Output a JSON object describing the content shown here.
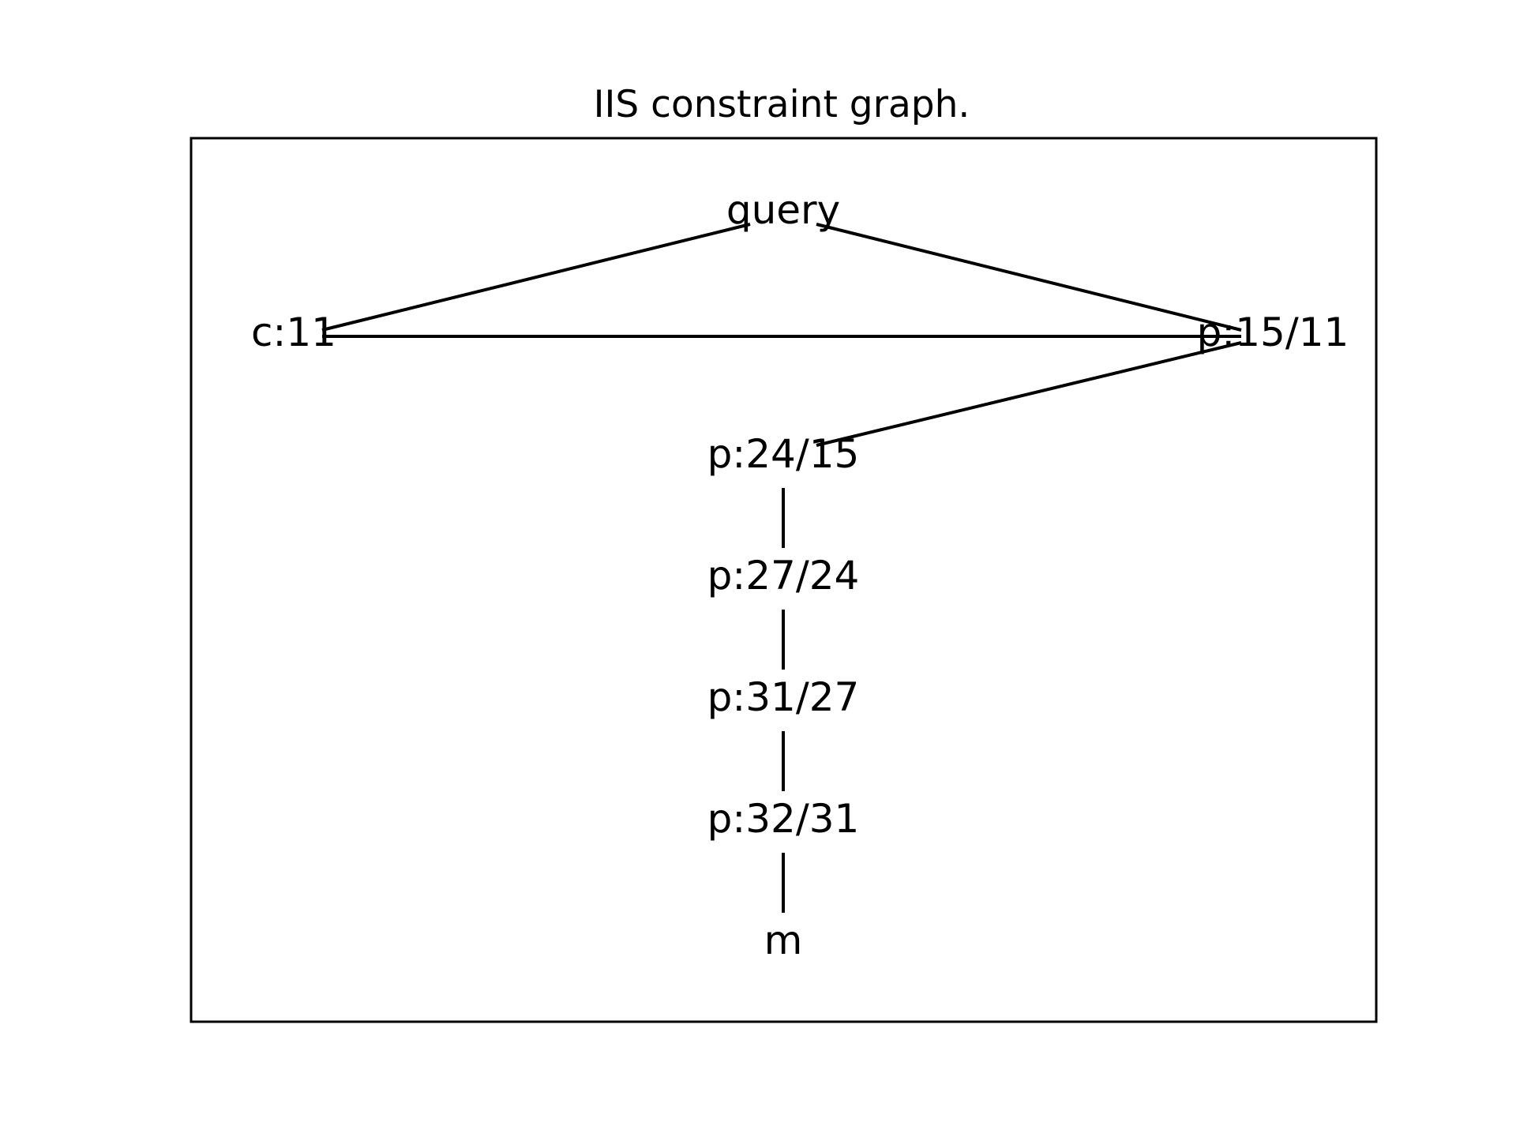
{
  "title": "IIS constraint graph.",
  "nodes": [
    {
      "id": "query",
      "label": "query"
    },
    {
      "id": "c11",
      "label": "c:11"
    },
    {
      "id": "p15_11",
      "label": "p:15/11"
    },
    {
      "id": "p24_15",
      "label": "p:24/15"
    },
    {
      "id": "p27_24",
      "label": "p:27/24"
    },
    {
      "id": "p31_27",
      "label": "p:31/27"
    },
    {
      "id": "p32_31",
      "label": "p:32/31"
    },
    {
      "id": "m",
      "label": "m"
    }
  ],
  "edges": [
    {
      "from": "query",
      "to": "c11"
    },
    {
      "from": "query",
      "to": "p15_11"
    },
    {
      "from": "c11",
      "to": "p15_11"
    },
    {
      "from": "p15_11",
      "to": "p24_15"
    },
    {
      "from": "p24_15",
      "to": "p27_24"
    },
    {
      "from": "p27_24",
      "to": "p31_27"
    },
    {
      "from": "p31_27",
      "to": "p32_31"
    },
    {
      "from": "p32_31",
      "to": "m"
    }
  ]
}
